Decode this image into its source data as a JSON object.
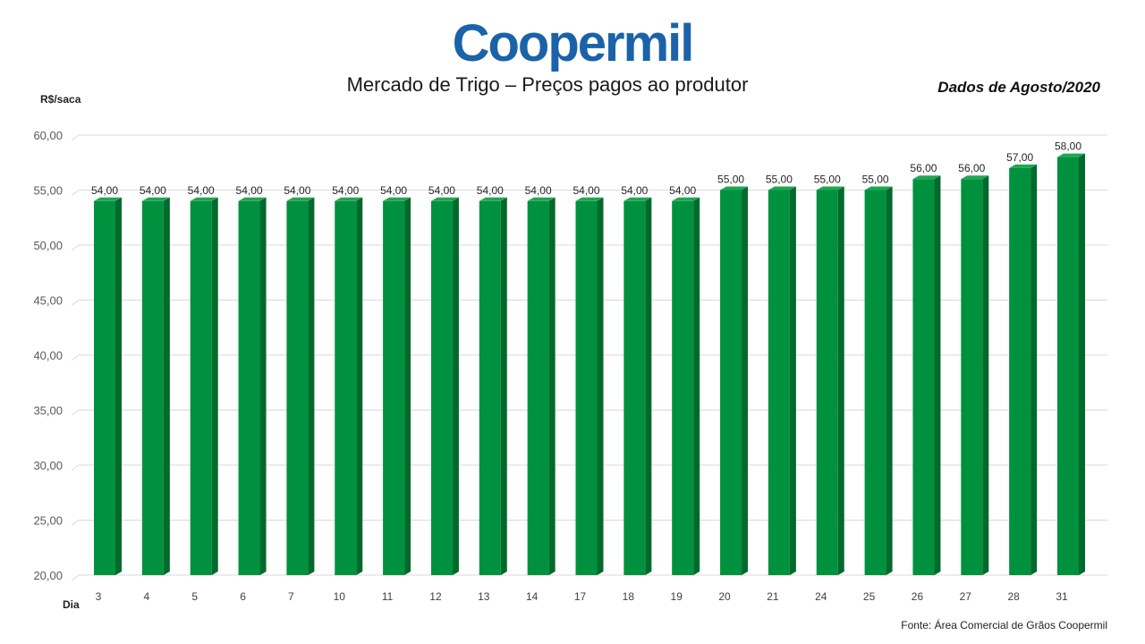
{
  "logo_text": "Coopermil",
  "title": "Mercado de Trigo – Preços pagos ao produtor",
  "period": "Dados de Agosto/2020",
  "source": "Fonte:  Área Comercial de Grãos Coopermil",
  "colors": {
    "logo": "#1b63a8",
    "bar_front": "#00913f",
    "bar_side": "#006a2c",
    "bar_top": "#1fa653",
    "grid": "#d9d9d9"
  },
  "chart_data": {
    "type": "bar",
    "ylabel": "R$/saca",
    "xlabel": "Dia",
    "ylim": [
      20,
      60
    ],
    "yticks": [
      "20,00",
      "25,00",
      "30,00",
      "35,00",
      "40,00",
      "45,00",
      "50,00",
      "55,00",
      "60,00"
    ],
    "grid": true,
    "categories": [
      "3",
      "4",
      "5",
      "6",
      "7",
      "10",
      "11",
      "12",
      "13",
      "14",
      "17",
      "18",
      "19",
      "20",
      "21",
      "24",
      "25",
      "26",
      "27",
      "28",
      "31"
    ],
    "values": [
      54,
      54,
      54,
      54,
      54,
      54,
      54,
      54,
      54,
      54,
      54,
      54,
      54,
      55,
      55,
      55,
      55,
      56,
      56,
      57,
      58
    ],
    "value_labels": [
      "54,00",
      "54,00",
      "54,00",
      "54,00",
      "54,00",
      "54,00",
      "54,00",
      "54,00",
      "54,00",
      "54,00",
      "54,00",
      "54,00",
      "54,00",
      "55,00",
      "55,00",
      "55,00",
      "55,00",
      "56,00",
      "56,00",
      "57,00",
      "58,00"
    ]
  }
}
